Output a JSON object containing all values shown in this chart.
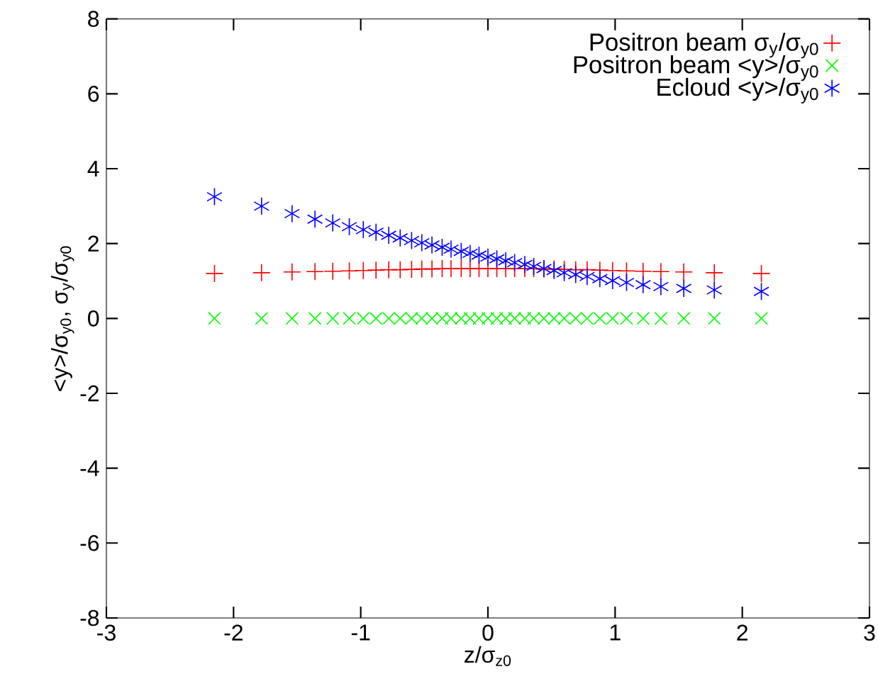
{
  "chart_data": {
    "type": "scatter",
    "xlabel": "z/σ$_{z0}$",
    "ylabel": "<y>/σ$_{y0}$, σ$_{y}$/σ$_{y0}$",
    "x": [
      -2.15,
      -1.78,
      -1.54,
      -1.36,
      -1.22,
      -1.09,
      -0.98,
      -0.88,
      -0.78,
      -0.69,
      -0.6,
      -0.52,
      -0.44,
      -0.36,
      -0.29,
      -0.21,
      -0.14,
      -0.07,
      0,
      0.07,
      0.14,
      0.21,
      0.29,
      0.36,
      0.44,
      0.52,
      0.6,
      0.69,
      0.78,
      0.88,
      0.98,
      1.09,
      1.22,
      1.36,
      1.54,
      1.78,
      2.15
    ],
    "series": [
      {
        "name": "Positron beam σ$_{y}$/σ$_{y0}$",
        "color": "#ff0000",
        "values": [
          1.2,
          1.22,
          1.24,
          1.25,
          1.26,
          1.27,
          1.28,
          1.29,
          1.3,
          1.3,
          1.31,
          1.32,
          1.32,
          1.33,
          1.33,
          1.33,
          1.33,
          1.33,
          1.33,
          1.33,
          1.33,
          1.33,
          1.33,
          1.33,
          1.32,
          1.32,
          1.31,
          1.3,
          1.3,
          1.29,
          1.28,
          1.27,
          1.26,
          1.25,
          1.24,
          1.22,
          1.2
        ]
      },
      {
        "name": "Positron beam <y>/σ$_{y0}$",
        "color": "#00ff00",
        "values": [
          0,
          0,
          0,
          0,
          0,
          0,
          0,
          0,
          0,
          0,
          0,
          0,
          0,
          0,
          0,
          0,
          0,
          0,
          0,
          0,
          0,
          0,
          0,
          0,
          0,
          0,
          0,
          0,
          0,
          0,
          0,
          0,
          0,
          0,
          0,
          0,
          0
        ]
      },
      {
        "name": "Ecloud <y>/σ$_{y0}$",
        "color": "#0000ff",
        "values": [
          3.25,
          3.0,
          2.8,
          2.65,
          2.55,
          2.45,
          2.37,
          2.3,
          2.22,
          2.15,
          2.08,
          2.02,
          1.96,
          1.9,
          1.85,
          1.79,
          1.74,
          1.69,
          1.64,
          1.59,
          1.54,
          1.49,
          1.44,
          1.39,
          1.33,
          1.28,
          1.22,
          1.17,
          1.12,
          1.06,
          1.01,
          0.96,
          0.9,
          0.85,
          0.8,
          0.76,
          0.72
        ]
      }
    ],
    "xlim": [
      -3,
      3
    ],
    "ylim": [
      -8,
      8
    ],
    "xticks": [
      -3,
      -2,
      -1,
      0,
      1,
      2,
      3
    ],
    "yticks": [
      -8,
      -6,
      -4,
      -2,
      0,
      2,
      4,
      6,
      8
    ],
    "grid": false,
    "legend": "top right"
  }
}
